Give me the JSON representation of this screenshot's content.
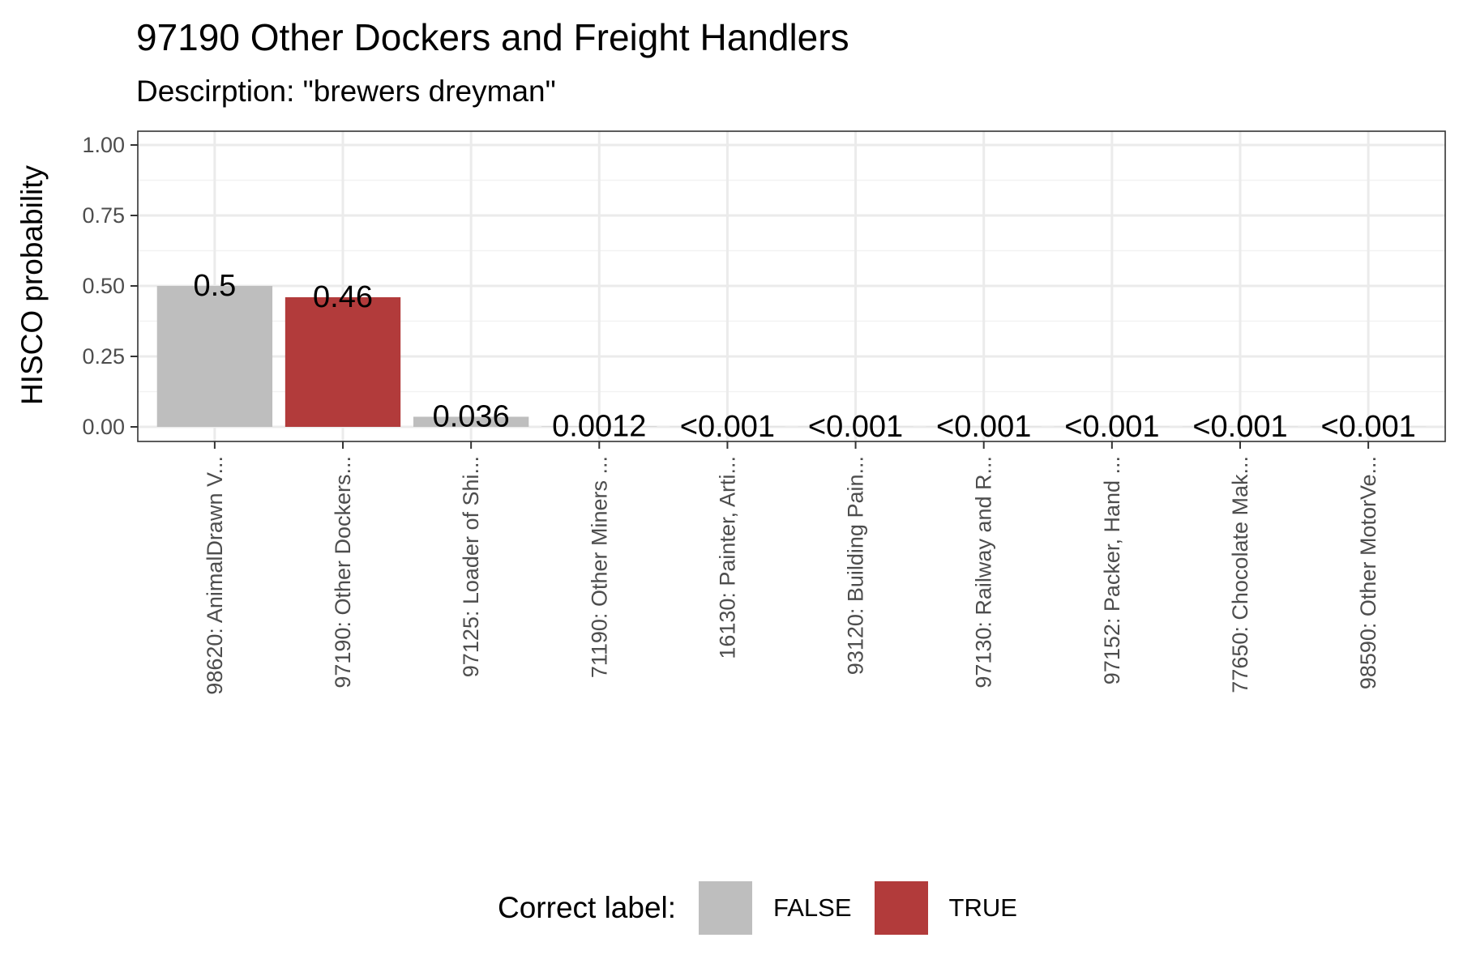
{
  "chart_data": {
    "type": "bar",
    "title": "97190 Other Dockers and Freight Handlers",
    "subtitle": "Descirption: \"brewers dreyman\"",
    "ylabel": "HISCO probability",
    "xlabel": "",
    "ylim": [
      0,
      1
    ],
    "yticks": [
      "0.00",
      "0.25",
      "0.50",
      "0.75",
      "1.00"
    ],
    "ytick_values": [
      0,
      0.25,
      0.5,
      0.75,
      1.0
    ],
    "grid": true,
    "categories": [
      "98620: AnimalDrawn V...",
      "97190: Other Dockers...",
      "97125: Loader of Shi...",
      "71190: Other Miners ...",
      "16130: Painter, Arti...",
      "93120: Building Pain...",
      "97130: Railway and R...",
      "97152: Packer, Hand ...",
      "77650: Chocolate Mak...",
      "98590: Other MotorVe..."
    ],
    "values": [
      0.5,
      0.46,
      0.036,
      0.0012,
      0.0005,
      0.0005,
      0.0005,
      0.0005,
      0.0005,
      0.0005
    ],
    "value_labels": [
      "0.5",
      "0.46",
      "0.036",
      "0.0012",
      "<0.001",
      "<0.001",
      "<0.001",
      "<0.001",
      "<0.001",
      "<0.001"
    ],
    "correct": [
      false,
      true,
      false,
      false,
      false,
      false,
      false,
      false,
      false,
      false
    ],
    "legend": {
      "title": "Correct label:",
      "position": "bottom",
      "entries": [
        {
          "label": "FALSE",
          "color": "#bebebe"
        },
        {
          "label": "TRUE",
          "color": "#b23b3b"
        }
      ]
    }
  }
}
